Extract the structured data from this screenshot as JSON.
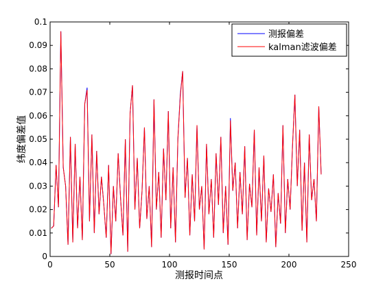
{
  "chart_data": {
    "type": "line",
    "x_label": "测报时间点",
    "y_label": "纬度偏差值",
    "xlim": [
      0,
      250
    ],
    "xticks": [
      0,
      50,
      100,
      150,
      200,
      250
    ],
    "ylim": [
      0,
      0.1
    ],
    "yticks": [
      0,
      0.01,
      0.02,
      0.03,
      0.04,
      0.05,
      0.06,
      0.07,
      0.08,
      0.09,
      0.1
    ],
    "legend": "northeast",
    "x": [
      1,
      3,
      5,
      7,
      9,
      11,
      13,
      15,
      17,
      19,
      21,
      23,
      25,
      27,
      29,
      31,
      33,
      35,
      37,
      39,
      41,
      43,
      45,
      47,
      49,
      51,
      53,
      55,
      57,
      59,
      61,
      63,
      65,
      67,
      69,
      71,
      73,
      75,
      77,
      79,
      81,
      83,
      85,
      87,
      89,
      91,
      93,
      95,
      97,
      99,
      101,
      103,
      105,
      107,
      109,
      111,
      113,
      115,
      117,
      119,
      121,
      123,
      125,
      127,
      129,
      131,
      133,
      135,
      137,
      139,
      141,
      143,
      145,
      147,
      149,
      151,
      153,
      155,
      157,
      159,
      161,
      163,
      165,
      167,
      169,
      171,
      173,
      175,
      177,
      179,
      181,
      183,
      185,
      187,
      189,
      191,
      193,
      195,
      197,
      199,
      201,
      203,
      205,
      207,
      209,
      211,
      213,
      215,
      217,
      219,
      221,
      223,
      225,
      227
    ],
    "series": [
      {
        "name": "测报偏差",
        "color": "#0000ff",
        "values": [
          0.012,
          0.013,
          0.039,
          0.021,
          0.096,
          0.038,
          0.03,
          0.005,
          0.051,
          0.006,
          0.048,
          0.012,
          0.034,
          0.007,
          0.065,
          0.072,
          0.015,
          0.052,
          0.01,
          0.045,
          0.018,
          0.034,
          0.022,
          0.008,
          0.039,
          0.001,
          0.03,
          0.015,
          0.044,
          0.025,
          0.009,
          0.05,
          0.002,
          0.061,
          0.073,
          0.02,
          0.042,
          0.012,
          0.028,
          0.055,
          0.016,
          0.03,
          0.004,
          0.067,
          0.02,
          0.036,
          0.008,
          0.046,
          0.024,
          0.062,
          0.012,
          0.038,
          0.006,
          0.05,
          0.069,
          0.079,
          0.025,
          0.042,
          0.009,
          0.035,
          0.015,
          0.056,
          0.02,
          0.03,
          0.003,
          0.048,
          0.018,
          0.033,
          0.008,
          0.044,
          0.022,
          0.051,
          0.01,
          0.03,
          0.005,
          0.059,
          0.028,
          0.04,
          0.012,
          0.036,
          0.018,
          0.047,
          0.007,
          0.031,
          0.021,
          0.054,
          0.009,
          0.038,
          0.015,
          0.043,
          0.006,
          0.029,
          0.019,
          0.035,
          0.004,
          0.027,
          0.014,
          0.056,
          0.01,
          0.033,
          0.02,
          0.047,
          0.069,
          0.03,
          0.054,
          0.011,
          0.04,
          0.006,
          0.052,
          0.024,
          0.033,
          0.015,
          0.064,
          0.035
        ]
      },
      {
        "name": "kalman滤波偏差",
        "color": "#ff0000",
        "values": [
          0.012,
          0.013,
          0.039,
          0.021,
          0.096,
          0.038,
          0.03,
          0.005,
          0.051,
          0.006,
          0.048,
          0.012,
          0.034,
          0.007,
          0.065,
          0.071,
          0.015,
          0.052,
          0.01,
          0.045,
          0.018,
          0.034,
          0.022,
          0.008,
          0.039,
          0.001,
          0.03,
          0.015,
          0.044,
          0.025,
          0.009,
          0.05,
          0.002,
          0.061,
          0.073,
          0.02,
          0.042,
          0.012,
          0.028,
          0.055,
          0.016,
          0.03,
          0.004,
          0.067,
          0.02,
          0.036,
          0.008,
          0.046,
          0.024,
          0.062,
          0.012,
          0.038,
          0.006,
          0.05,
          0.068,
          0.079,
          0.025,
          0.042,
          0.009,
          0.035,
          0.015,
          0.056,
          0.02,
          0.03,
          0.003,
          0.048,
          0.018,
          0.033,
          0.008,
          0.044,
          0.022,
          0.051,
          0.01,
          0.03,
          0.005,
          0.058,
          0.028,
          0.04,
          0.012,
          0.036,
          0.018,
          0.047,
          0.007,
          0.031,
          0.021,
          0.054,
          0.009,
          0.038,
          0.015,
          0.043,
          0.006,
          0.029,
          0.019,
          0.035,
          0.004,
          0.027,
          0.014,
          0.056,
          0.01,
          0.033,
          0.02,
          0.047,
          0.069,
          0.03,
          0.054,
          0.011,
          0.04,
          0.006,
          0.052,
          0.024,
          0.033,
          0.015,
          0.064,
          0.035
        ]
      }
    ]
  }
}
